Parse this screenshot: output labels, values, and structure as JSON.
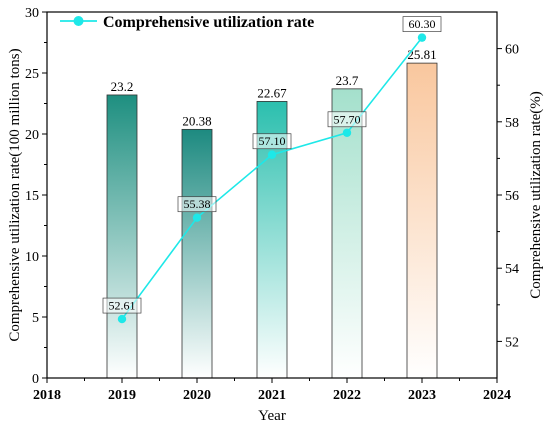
{
  "chart_data": {
    "type": "bar+line",
    "x": [
      2019,
      2020,
      2021,
      2022,
      2023
    ],
    "x_ticks": [
      "2018",
      "2019",
      "2020",
      "2021",
      "2022",
      "2023",
      "2024"
    ],
    "xlim": [
      2018,
      2024
    ],
    "xlabel": "Year",
    "bars": {
      "axis": "left",
      "values": [
        23.2,
        20.38,
        22.67,
        23.7,
        25.81
      ],
      "labels": [
        "23.2",
        "20.38",
        "22.67",
        "23.7",
        "25.81"
      ],
      "colors": [
        "#1e8f80",
        "#1d8a80",
        "#2bbfae",
        "#a4e0cc",
        "#f9c79e"
      ]
    },
    "line": {
      "axis": "right",
      "name": "Comprehensive  utilization rate",
      "values": [
        52.61,
        55.38,
        57.1,
        57.7,
        60.3
      ],
      "labels": [
        "52.61",
        "55.38",
        "57.10",
        "57.70",
        "60.30"
      ],
      "color": "#1ee8e8"
    },
    "left_axis": {
      "label": "Comprehensive utilization rate(100 million tons)",
      "ylim": [
        0,
        30
      ],
      "ticks": [
        "0",
        "5",
        "10",
        "15",
        "20",
        "25",
        "30"
      ]
    },
    "right_axis": {
      "label": "Comprehensive  utilization rate(%)",
      "ylim": [
        51,
        61
      ],
      "ticks": [
        "52",
        "54",
        "56",
        "58",
        "60"
      ]
    },
    "legend": {
      "placement": "top-left"
    },
    "grid": false
  }
}
